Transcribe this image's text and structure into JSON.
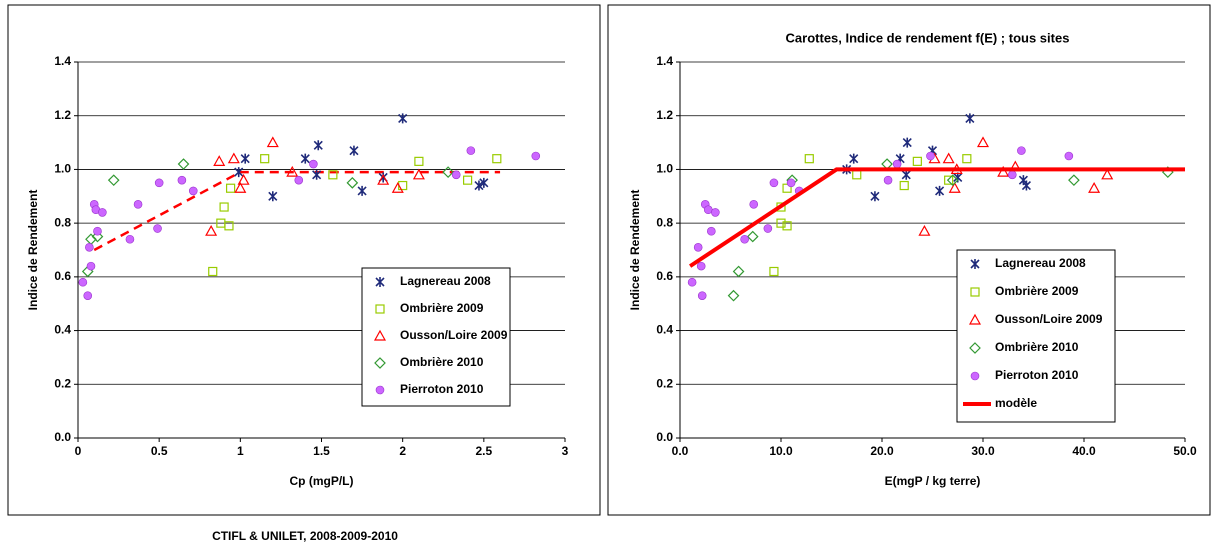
{
  "chart_data": [
    {
      "type": "scatter",
      "xlabel": "Cp (mgP/L)",
      "ylabel": "Indice de Rendement",
      "xlim": [
        0,
        3
      ],
      "ylim": [
        0,
        1.4
      ],
      "xticks": [
        0,
        0.5,
        1,
        1.5,
        2,
        2.5,
        3
      ],
      "yticks": [
        {
          "value": 0,
          "label": "0.0"
        },
        {
          "value": 0.2,
          "label": "0.2"
        },
        {
          "value": 0.4,
          "label": "0.4"
        },
        {
          "value": 0.6,
          "label": "0.6"
        },
        {
          "value": 0.8,
          "label": "0.8"
        },
        {
          "value": 1,
          "label": "1.0"
        },
        {
          "value": 1.2,
          "label": "1.2"
        },
        {
          "value": 1.4,
          "label": "1.4"
        }
      ],
      "grid": true,
      "legend": "right",
      "series": [
        {
          "name": "Lagnereau 2008",
          "color": "#1f2a7a",
          "marker": "x",
          "x": [
            0.99,
            1.03,
            1.2,
            1.4,
            1.47,
            1.48,
            1.7,
            1.75,
            1.88,
            2.0,
            2.47,
            2.5
          ],
          "y": [
            0.99,
            1.04,
            0.9,
            1.04,
            0.98,
            1.09,
            1.07,
            0.92,
            0.97,
            1.19,
            0.94,
            0.95
          ]
        },
        {
          "name": "Ombrière 2009",
          "color": "#99cc00",
          "marker": "square",
          "x": [
            0.83,
            0.88,
            0.9,
            0.93,
            0.94,
            1.15,
            1.57,
            2.0,
            2.1,
            2.4,
            2.58
          ],
          "y": [
            0.62,
            0.8,
            0.86,
            0.79,
            0.93,
            1.04,
            0.98,
            0.94,
            1.03,
            0.96,
            1.04
          ]
        },
        {
          "name": "Ousson/Loire 2009",
          "color": "#ff0000",
          "marker": "triangle",
          "x": [
            0.82,
            0.87,
            0.96,
            1.0,
            1.02,
            1.2,
            1.32,
            1.88,
            1.97,
            2.1
          ],
          "y": [
            0.77,
            1.03,
            1.04,
            0.93,
            0.96,
            1.1,
            0.99,
            0.96,
            0.93,
            0.98
          ]
        },
        {
          "name": "Ombrière 2010",
          "color": "#339933",
          "marker": "diamond",
          "x": [
            0.06,
            0.08,
            0.12,
            0.22,
            0.65,
            1.69,
            2.28
          ],
          "y": [
            0.62,
            0.74,
            0.75,
            0.96,
            1.02,
            0.95,
            0.99
          ]
        },
        {
          "name": "Pierroton 2010",
          "color": "#cc66ff",
          "marker": "circle",
          "x": [
            0.03,
            0.06,
            0.07,
            0.08,
            0.1,
            0.11,
            0.12,
            0.15,
            0.32,
            0.37,
            0.49,
            0.5,
            0.64,
            0.71,
            1.36,
            1.45,
            2.33,
            2.42,
            2.82
          ],
          "y": [
            0.58,
            0.53,
            0.71,
            0.64,
            0.87,
            0.85,
            0.77,
            0.84,
            0.74,
            0.87,
            0.78,
            0.95,
            0.96,
            0.92,
            0.96,
            1.02,
            0.98,
            1.07,
            1.05
          ]
        }
      ],
      "trend": {
        "color": "#ff0000",
        "dashed": true,
        "x": [
          0.1,
          1.0,
          2.6
        ],
        "y": [
          0.7,
          0.99,
          0.99
        ]
      }
    },
    {
      "type": "scatter",
      "title": "Carottes, Indice de rendement f(E) ; tous sites",
      "xlabel": "E(mgP / kg terre)",
      "ylabel": "Indice de Rendement",
      "xlim": [
        0,
        50
      ],
      "ylim": [
        0,
        1.4
      ],
      "xticks": [
        {
          "value": 0,
          "label": "0.0"
        },
        {
          "value": 10,
          "label": "10.0"
        },
        {
          "value": 20,
          "label": "20.0"
        },
        {
          "value": 30,
          "label": "30.0"
        },
        {
          "value": 40,
          "label": "40.0"
        },
        {
          "value": 50,
          "label": "50.0"
        }
      ],
      "yticks": [
        {
          "value": 0,
          "label": "0.0"
        },
        {
          "value": 0.2,
          "label": "0.2"
        },
        {
          "value": 0.4,
          "label": "0.4"
        },
        {
          "value": 0.6,
          "label": "0.6"
        },
        {
          "value": 0.8,
          "label": "0.8"
        },
        {
          "value": 1,
          "label": "1.0"
        },
        {
          "value": 1.2,
          "label": "1.2"
        },
        {
          "value": 1.4,
          "label": "1.4"
        }
      ],
      "grid": true,
      "legend": "right",
      "series": [
        {
          "name": "Lagnereau 2008",
          "color": "#1f2a7a",
          "marker": "x",
          "x": [
            16.5,
            17.2,
            19.3,
            21.8,
            22.5,
            22.4,
            25,
            25.7,
            27.5,
            28.7,
            34,
            34.3
          ],
          "y": [
            1.0,
            1.04,
            0.9,
            1.04,
            1.1,
            0.98,
            1.07,
            0.92,
            0.97,
            1.19,
            0.96,
            0.94
          ]
        },
        {
          "name": "Ombrière 2009",
          "color": "#99cc00",
          "marker": "square",
          "x": [
            9.3,
            10,
            10,
            10.6,
            10.6,
            12.8,
            17.5,
            22.2,
            23.5,
            26.6,
            28.4
          ],
          "y": [
            0.62,
            0.8,
            0.86,
            0.79,
            0.93,
            1.04,
            0.98,
            0.94,
            1.03,
            0.96,
            1.04
          ]
        },
        {
          "name": "Ousson/Loire 2009",
          "color": "#ff0000",
          "marker": "triangle",
          "x": [
            24.2,
            25.2,
            26.6,
            27.2,
            27.4,
            30,
            32,
            33.2,
            41,
            42.3
          ],
          "y": [
            0.77,
            1.04,
            1.04,
            0.93,
            1.0,
            1.1,
            0.99,
            1.01,
            0.93,
            0.98
          ]
        },
        {
          "name": "Ombrière 2010",
          "color": "#339933",
          "marker": "diamond",
          "x": [
            5.3,
            5.8,
            7.2,
            11.1,
            20.5,
            27,
            39,
            48.3
          ],
          "y": [
            0.53,
            0.62,
            0.75,
            0.96,
            1.02,
            0.96,
            0.96,
            0.99
          ]
        },
        {
          "name": "Pierroton 2010",
          "color": "#cc66ff",
          "marker": "circle",
          "x": [
            1.2,
            1.8,
            2.1,
            2.2,
            2.5,
            2.8,
            3.1,
            3.5,
            6.4,
            7.3,
            8.7,
            9.3,
            11,
            11.8,
            20.6,
            21.5,
            24.8,
            32.9,
            33.8,
            38.5
          ],
          "y": [
            0.58,
            0.71,
            0.64,
            0.53,
            0.87,
            0.85,
            0.77,
            0.84,
            0.74,
            0.87,
            0.78,
            0.95,
            0.95,
            0.92,
            0.96,
            1.02,
            1.05,
            0.98,
            1.07,
            1.05
          ]
        },
        {
          "name": "modèle",
          "color": "#ff0000",
          "marker": "line",
          "x": [
            1.0,
            15.5,
            50
          ],
          "y": [
            0.64,
            1.0,
            1.0
          ]
        }
      ]
    }
  ],
  "footer": "CTIFL & UNILET, 2008-2009-2010"
}
